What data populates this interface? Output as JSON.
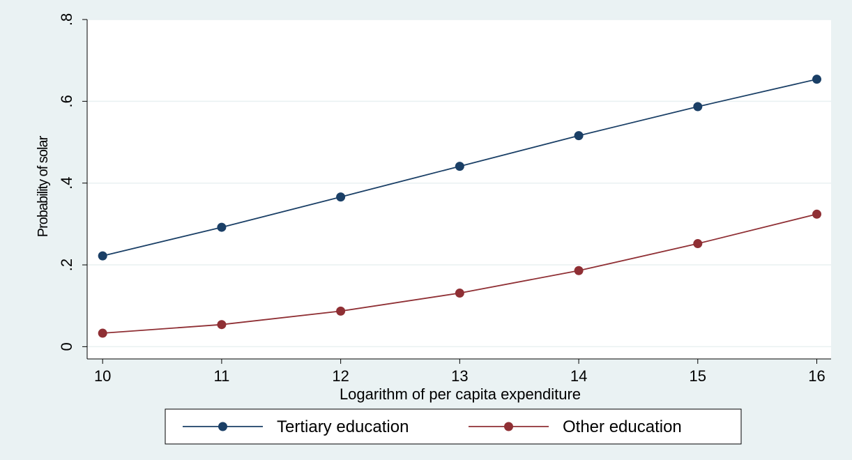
{
  "chart_data": {
    "type": "line",
    "title": "",
    "xlabel": "Logarithm of per capita expenditure",
    "ylabel": "Probability of solar",
    "x": [
      10,
      11,
      12,
      13,
      14,
      15,
      16
    ],
    "x_ticks": [
      "10",
      "11",
      "12",
      "13",
      "14",
      "15",
      "16"
    ],
    "y_ticks": [
      {
        "value": 0,
        "label": "0"
      },
      {
        "value": 0.2,
        "label": ".2"
      },
      {
        "value": 0.4,
        "label": ".4"
      },
      {
        "value": 0.6,
        "label": ".6"
      },
      {
        "value": 0.8,
        "label": ".8"
      }
    ],
    "xlim": [
      9.87,
      16.12
    ],
    "ylim": [
      -0.03,
      0.8
    ],
    "grid": "horizontal",
    "legend_position": "bottom",
    "series": [
      {
        "name": "Tertiary education",
        "color": "#1a3f66",
        "values": [
          0.222,
          0.292,
          0.366,
          0.441,
          0.516,
          0.587,
          0.654
        ]
      },
      {
        "name": "Other education",
        "color": "#8f2f34",
        "values": [
          0.033,
          0.054,
          0.087,
          0.131,
          0.186,
          0.252,
          0.324
        ]
      }
    ]
  }
}
